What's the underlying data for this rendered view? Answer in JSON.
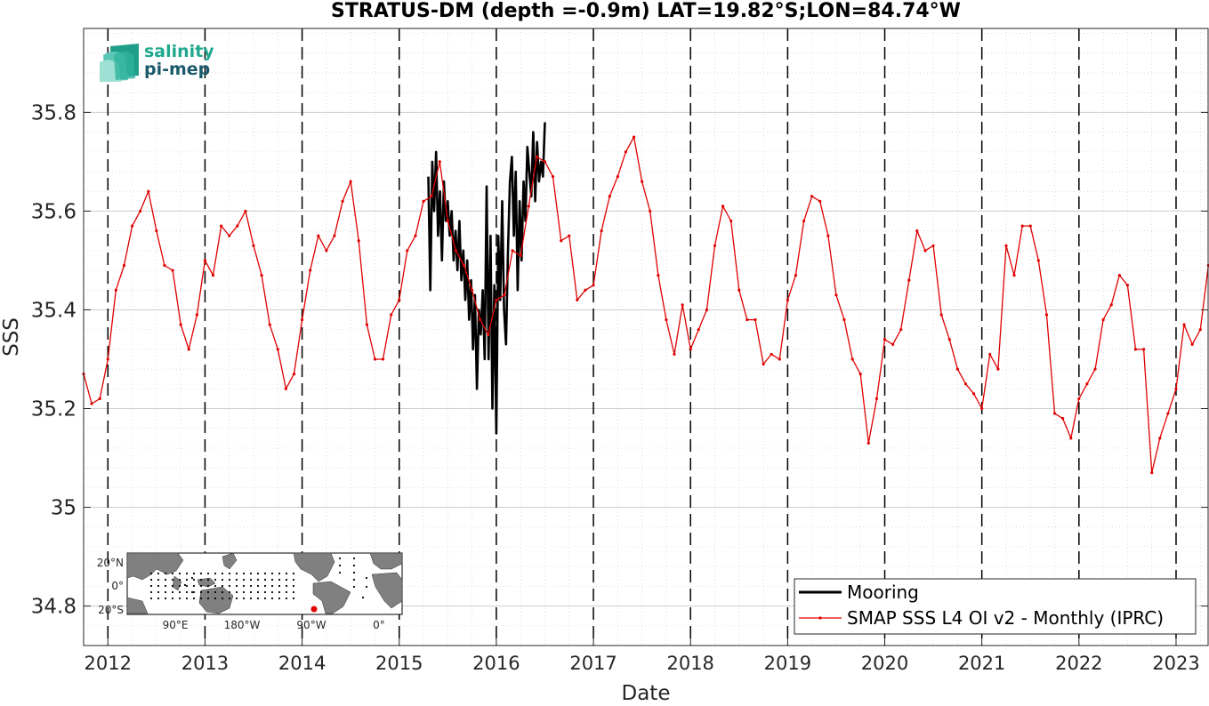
{
  "chart_data": {
    "type": "line",
    "title": "STRATUS-DM (depth =-0.9m) LAT=19.82°S;LON=84.74°W",
    "xlabel": "Date",
    "ylabel": "SSS",
    "xlim": [
      2011.75,
      2023.33
    ],
    "ylim": [
      34.72,
      35.97
    ],
    "x_ticks": [
      "2012",
      "2013",
      "2014",
      "2015",
      "2016",
      "2017",
      "2018",
      "2019",
      "2020",
      "2021",
      "2022",
      "2023"
    ],
    "y_ticks": [
      "34.8",
      "35",
      "35.2",
      "35.4",
      "35.6",
      "35.8"
    ],
    "grid": true,
    "year_boundaries_dashed": true,
    "legend": {
      "position": "bottom-right",
      "entries": [
        "Mooring",
        "SMAP SSS L4 OI v2 - Monthly (IPRC)"
      ]
    },
    "series": [
      {
        "name": "Mooring",
        "color": "#000000",
        "x": [
          2015.3,
          2015.32,
          2015.34,
          2015.36,
          2015.38,
          2015.4,
          2015.42,
          2015.44,
          2015.46,
          2015.48,
          2015.5,
          2015.52,
          2015.54,
          2015.56,
          2015.58,
          2015.6,
          2015.62,
          2015.64,
          2015.66,
          2015.68,
          2015.7,
          2015.72,
          2015.74,
          2015.76,
          2015.78,
          2015.8,
          2015.82,
          2015.84,
          2015.86,
          2015.88,
          2015.9,
          2015.92,
          2015.94,
          2015.96,
          2015.98,
          2016.0,
          2016.02,
          2016.04,
          2016.06,
          2016.08,
          2016.1,
          2016.12,
          2016.14,
          2016.16,
          2016.18,
          2016.2,
          2016.22,
          2016.24,
          2016.26,
          2016.28,
          2016.3,
          2016.32,
          2016.34,
          2016.36,
          2016.38,
          2016.4,
          2016.42,
          2016.44,
          2016.46,
          2016.48,
          2016.5
        ],
        "values": [
          35.67,
          35.44,
          35.7,
          35.6,
          35.72,
          35.55,
          35.64,
          35.5,
          35.66,
          35.58,
          35.62,
          35.55,
          35.6,
          35.5,
          35.56,
          35.48,
          35.58,
          35.46,
          35.52,
          35.42,
          35.5,
          35.38,
          35.46,
          35.32,
          35.43,
          35.24,
          35.4,
          35.35,
          35.44,
          35.3,
          35.65,
          35.3,
          35.55,
          35.2,
          35.45,
          35.15,
          35.55,
          35.42,
          35.62,
          35.4,
          35.33,
          35.52,
          35.66,
          35.71,
          35.55,
          35.68,
          35.44,
          35.62,
          35.5,
          35.66,
          35.58,
          35.73,
          35.68,
          35.63,
          35.76,
          35.62,
          35.74,
          35.66,
          35.7,
          35.67,
          35.78
        ]
      },
      {
        "name": "SMAP SSS L4 OI v2 - Monthly (IPRC)",
        "color": "#e00000",
        "x": [
          2011.75,
          2011.833,
          2011.917,
          2012.0,
          2012.083,
          2012.167,
          2012.25,
          2012.333,
          2012.417,
          2012.5,
          2012.583,
          2012.667,
          2012.75,
          2012.833,
          2012.917,
          2013.0,
          2013.083,
          2013.167,
          2013.25,
          2013.333,
          2013.417,
          2013.5,
          2013.583,
          2013.667,
          2013.75,
          2013.833,
          2013.917,
          2014.0,
          2014.083,
          2014.167,
          2014.25,
          2014.333,
          2014.417,
          2014.5,
          2014.583,
          2014.667,
          2014.75,
          2014.833,
          2014.917,
          2015.0,
          2015.083,
          2015.167,
          2015.25,
          2015.333,
          2015.417,
          2015.5,
          2015.583,
          2015.667,
          2015.75,
          2015.833,
          2015.917,
          2016.0,
          2016.083,
          2016.167,
          2016.25,
          2016.333,
          2016.417,
          2016.5,
          2016.583,
          2016.667,
          2016.75,
          2016.833,
          2016.917,
          2017.0,
          2017.083,
          2017.167,
          2017.25,
          2017.333,
          2017.417,
          2017.5,
          2017.583,
          2017.667,
          2017.75,
          2017.833,
          2017.917,
          2018.0,
          2018.083,
          2018.167,
          2018.25,
          2018.333,
          2018.417,
          2018.5,
          2018.583,
          2018.667,
          2018.75,
          2018.833,
          2018.917,
          2019.0,
          2019.083,
          2019.167,
          2019.25,
          2019.333,
          2019.417,
          2019.5,
          2019.583,
          2019.667,
          2019.75,
          2019.833,
          2019.917,
          2020.0,
          2020.083,
          2020.167,
          2020.25,
          2020.333,
          2020.417,
          2020.5,
          2020.583,
          2020.667,
          2020.75,
          2020.833,
          2020.917,
          2021.0,
          2021.083,
          2021.167,
          2021.25,
          2021.333,
          2021.417,
          2021.5,
          2021.583,
          2021.667,
          2021.75,
          2021.833,
          2021.917,
          2022.0,
          2022.083,
          2022.167,
          2022.25,
          2022.333,
          2022.417,
          2022.5,
          2022.583,
          2022.667,
          2022.75,
          2022.833,
          2022.917,
          2023.0,
          2023.083,
          2023.167,
          2023.25,
          2023.333
        ],
        "values": [
          35.27,
          35.21,
          35.22,
          35.3,
          35.44,
          35.49,
          35.57,
          35.6,
          35.64,
          35.56,
          35.49,
          35.48,
          35.37,
          35.32,
          35.39,
          35.5,
          35.47,
          35.57,
          35.55,
          35.57,
          35.6,
          35.53,
          35.47,
          35.37,
          35.32,
          35.24,
          35.27,
          35.38,
          35.48,
          35.55,
          35.52,
          35.55,
          35.62,
          35.66,
          35.54,
          35.37,
          35.3,
          35.3,
          35.39,
          35.42,
          35.52,
          35.55,
          35.62,
          35.63,
          35.7,
          35.58,
          35.52,
          35.49,
          35.44,
          35.38,
          35.35,
          35.42,
          35.43,
          35.52,
          35.51,
          35.61,
          35.71,
          35.7,
          35.67,
          35.54,
          35.55,
          35.42,
          35.44,
          35.45,
          35.56,
          35.63,
          35.67,
          35.72,
          35.75,
          35.66,
          35.6,
          35.47,
          35.38,
          35.31,
          35.41,
          35.32,
          35.36,
          35.4,
          35.53,
          35.61,
          35.58,
          35.44,
          35.38,
          35.38,
          35.29,
          35.31,
          35.3,
          35.42,
          35.47,
          35.58,
          35.63,
          35.62,
          35.55,
          35.43,
          35.38,
          35.3,
          35.27,
          35.13,
          35.22,
          35.34,
          35.33,
          35.36,
          35.46,
          35.56,
          35.52,
          35.53,
          35.39,
          35.34,
          35.28,
          35.25,
          35.23,
          35.2,
          35.31,
          35.28,
          35.53,
          35.47,
          35.57,
          35.57,
          35.5,
          35.39,
          35.19,
          35.18,
          35.14,
          35.22,
          35.25,
          35.28,
          35.38,
          35.41,
          35.47,
          35.45,
          35.32,
          35.32,
          35.07,
          35.14,
          35.19,
          35.24,
          35.37,
          35.33,
          35.36,
          35.49
        ]
      }
    ]
  },
  "logo": {
    "line1": "salinity",
    "line2": "pi-mep"
  },
  "inset_map": {
    "lat_labels": [
      "20°N",
      "0°",
      "20°S"
    ],
    "lon_labels": [
      "90°E",
      "180°W",
      "90°W",
      "0°"
    ],
    "station_marker_color": "#e00000"
  }
}
